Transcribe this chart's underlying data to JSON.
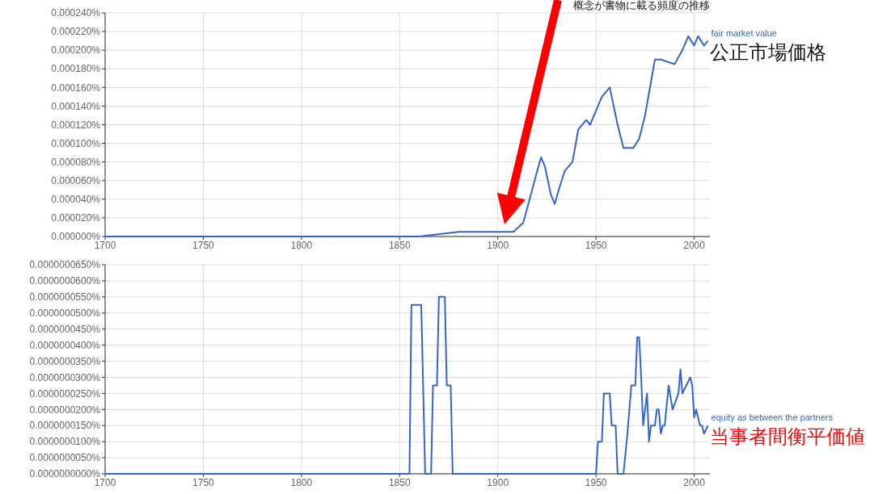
{
  "chart_data": [
    {
      "type": "line",
      "title": "概念が書物に載る頻度の推移",
      "x": [
        1700,
        1820,
        1840,
        1860,
        1880,
        1893,
        1900,
        1908,
        1913,
        1920,
        1922,
        1924,
        1927,
        1929,
        1931,
        1934,
        1938,
        1941,
        1945,
        1947,
        1951,
        1953,
        1957,
        1961,
        1964,
        1969,
        1972,
        1975,
        1980,
        1983,
        1990,
        1994,
        1997,
        2000,
        2002,
        2005,
        2007
      ],
      "series": [
        {
          "name": "fair market value",
          "color": "#3366cc",
          "values": [
            0,
            0,
            0,
            0,
            5e-06,
            5e-06,
            5e-06,
            5e-06,
            1.5e-05,
            7e-05,
            8.5e-05,
            7.5e-05,
            4.5e-05,
            3.5e-05,
            5e-05,
            7e-05,
            8e-05,
            0.000115,
            0.000125,
            0.00012,
            0.00014,
            0.00015,
            0.00016,
            0.00012,
            9.5e-05,
            9.5e-05,
            0.000105,
            0.00013,
            0.00019,
            0.00019,
            0.000185,
            0.0002,
            0.000215,
            0.000205,
            0.000215,
            0.000205,
            0.00021
          ]
        }
      ],
      "annotations": [
        "公正市場価格"
      ],
      "xlim": [
        1700,
        2008
      ],
      "xticks": [
        1700,
        1750,
        1800,
        1850,
        1900,
        1950,
        2000
      ],
      "ylim": [
        0,
        0.00024
      ],
      "yticks": [
        {
          "value": 0,
          "label": "0.000000%"
        },
        {
          "value": 2e-05,
          "label": "0.000020%"
        },
        {
          "value": 4e-05,
          "label": "0.000040%"
        },
        {
          "value": 6e-05,
          "label": "0.000060%"
        },
        {
          "value": 8e-05,
          "label": "0.000080%"
        },
        {
          "value": 0.0001,
          "label": "0.000100%"
        },
        {
          "value": 0.00012,
          "label": "0.000120%"
        },
        {
          "value": 0.00014,
          "label": "0.000140%"
        },
        {
          "value": 0.00016,
          "label": "0.000160%"
        },
        {
          "value": 0.00018,
          "label": "0.000180%"
        },
        {
          "value": 0.0002,
          "label": "0.000200%"
        },
        {
          "value": 0.00022,
          "label": "0.000220%"
        },
        {
          "value": 0.00024,
          "label": "0.000240%"
        }
      ],
      "grid": true
    },
    {
      "type": "line",
      "x": [
        1700,
        1855,
        1856,
        1861,
        1863,
        1866,
        1867,
        1869,
        1870,
        1873,
        1874,
        1876,
        1877,
        1950,
        1951,
        1953,
        1954,
        1957,
        1958,
        1960,
        1961,
        1964,
        1966,
        1968,
        1970,
        1971,
        1972,
        1973,
        1974,
        1976,
        1977,
        1978,
        1980,
        1981,
        1982,
        1983,
        1984,
        1985,
        1987,
        1989,
        1992,
        1993,
        1994,
        1998,
        1999,
        2000,
        2001,
        2003,
        2004,
        2005,
        2007
      ],
      "series": [
        {
          "name": "equity as between the partners",
          "color": "#3366cc",
          "values": [
            0,
            0,
            5.25e-08,
            5.25e-08,
            0,
            0,
            2.75e-08,
            2.75e-08,
            5.5e-08,
            5.5e-08,
            2.75e-08,
            2.75e-08,
            0,
            0,
            1e-08,
            1e-08,
            2.5e-08,
            2.5e-08,
            1.5e-08,
            1.5e-08,
            0,
            0,
            1.25e-08,
            2.75e-08,
            2.75e-08,
            4.25e-08,
            4.25e-08,
            3e-08,
            1.5e-08,
            2.5e-08,
            1e-08,
            1.5e-08,
            1.5e-08,
            2e-08,
            2e-08,
            1.25e-08,
            1.5e-08,
            1.5e-08,
            2.75e-08,
            2e-08,
            2.5e-08,
            3.25e-08,
            2.5e-08,
            3e-08,
            2.75e-08,
            1.75e-08,
            2e-08,
            1.5e-08,
            1.5e-08,
            1.25e-08,
            1.5e-08
          ]
        }
      ],
      "annotations": [
        "当事者間衡平価値"
      ],
      "xlim": [
        1700,
        2008
      ],
      "xticks": [
        1700,
        1750,
        1800,
        1850,
        1900,
        1950,
        2000
      ],
      "ylim": [
        0,
        6.5e-08
      ],
      "yticks": [
        {
          "value": 0,
          "label": "0.0000000000%"
        },
        {
          "value": 5e-09,
          "label": "0.0000000050%"
        },
        {
          "value": 1e-08,
          "label": "0.0000000100%"
        },
        {
          "value": 1.5e-08,
          "label": "0.0000000150%"
        },
        {
          "value": 2e-08,
          "label": "0.0000000200%"
        },
        {
          "value": 2.5e-08,
          "label": "0.0000000250%"
        },
        {
          "value": 3e-08,
          "label": "0.0000000300%"
        },
        {
          "value": 3.5e-08,
          "label": "0.0000000350%"
        },
        {
          "value": 4e-08,
          "label": "0.0000000400%"
        },
        {
          "value": 4.5e-08,
          "label": "0.0000000450%"
        },
        {
          "value": 5e-08,
          "label": "0.0000000500%"
        },
        {
          "value": 5.5e-08,
          "label": "0.0000000550%"
        },
        {
          "value": 6e-08,
          "label": "0.0000000600%"
        },
        {
          "value": 6.5e-08,
          "label": "0.0000000650%"
        }
      ],
      "grid": true
    }
  ]
}
